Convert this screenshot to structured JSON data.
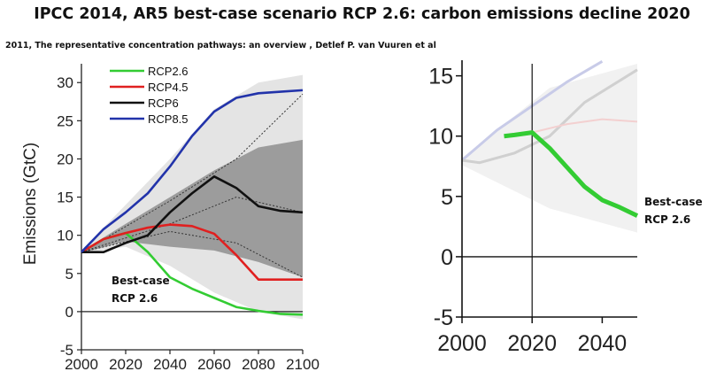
{
  "title": "IPCC 2014, AR5 best-case scenario RCP 2.6:  carbon emissions decline 2020",
  "citation": "2011, The representative concentration pathways: an overview , Detlef P. van Vuuren et al",
  "colors": {
    "RCP2.6": "#33cc33",
    "RCP4.5": "#e02020",
    "RCP6": "#111111",
    "RCP8.5": "#2233aa",
    "band_light": "#e4e4e4",
    "band_dark": "#9c9c9c"
  },
  "chart_data": [
    {
      "type": "line",
      "ylabel": "Emissions (GtC)",
      "xlabel": "",
      "xlim": [
        2000,
        2100
      ],
      "ylim": [
        -5,
        32
      ],
      "x_ticks": [
        2000,
        2020,
        2040,
        2060,
        2080,
        2100
      ],
      "y_ticks": [
        -5,
        0,
        5,
        10,
        15,
        20,
        25,
        30
      ],
      "legend": {
        "position": "top-left",
        "entries": [
          "RCP2.6",
          "RCP4.5",
          "RCP6",
          "RCP8.5"
        ]
      },
      "series": [
        {
          "name": "RCP2.6",
          "x": [
            2000,
            2010,
            2020,
            2030,
            2040,
            2050,
            2060,
            2070,
            2080,
            2090,
            2100
          ],
          "y": [
            7.8,
            9.5,
            10.3,
            7.8,
            4.5,
            3.0,
            1.8,
            0.6,
            0.1,
            -0.3,
            -0.4
          ]
        },
        {
          "name": "RCP4.5",
          "x": [
            2000,
            2010,
            2020,
            2030,
            2040,
            2050,
            2060,
            2070,
            2080,
            2090,
            2100
          ],
          "y": [
            7.8,
            9.5,
            10.3,
            11.0,
            11.4,
            11.2,
            10.2,
            7.4,
            4.2,
            4.2,
            4.2
          ]
        },
        {
          "name": "RCP6",
          "x": [
            2000,
            2010,
            2020,
            2030,
            2040,
            2050,
            2060,
            2070,
            2080,
            2090,
            2100
          ],
          "y": [
            7.8,
            7.8,
            9.0,
            10.0,
            13.0,
            15.5,
            17.7,
            16.2,
            13.8,
            13.2,
            13.0
          ]
        },
        {
          "name": "RCP8.5",
          "x": [
            2000,
            2010,
            2020,
            2030,
            2040,
            2050,
            2060,
            2070,
            2080,
            2090,
            2100
          ],
          "y": [
            7.8,
            10.8,
            13.0,
            15.5,
            19.0,
            23.0,
            26.2,
            28.0,
            28.6,
            28.8,
            29.0
          ]
        }
      ],
      "annotations": [
        "Best-case",
        "RCP 2.6"
      ]
    },
    {
      "type": "line",
      "xlim": [
        2000,
        2050
      ],
      "ylim": [
        -5,
        16
      ],
      "x_ticks": [
        2000,
        2020,
        2040
      ],
      "y_ticks": [
        -5,
        0,
        5,
        10,
        15
      ],
      "vertical_line_x": 2020,
      "series": [
        {
          "name": "RCP2.6",
          "x": [
            2012,
            2015,
            2020,
            2025,
            2030,
            2035,
            2040,
            2045,
            2050
          ],
          "y": [
            10.0,
            10.1,
            10.3,
            9.0,
            7.4,
            5.8,
            4.7,
            4.1,
            3.4
          ]
        }
      ],
      "annotations": [
        "Best-case",
        "RCP 2.6"
      ]
    }
  ]
}
